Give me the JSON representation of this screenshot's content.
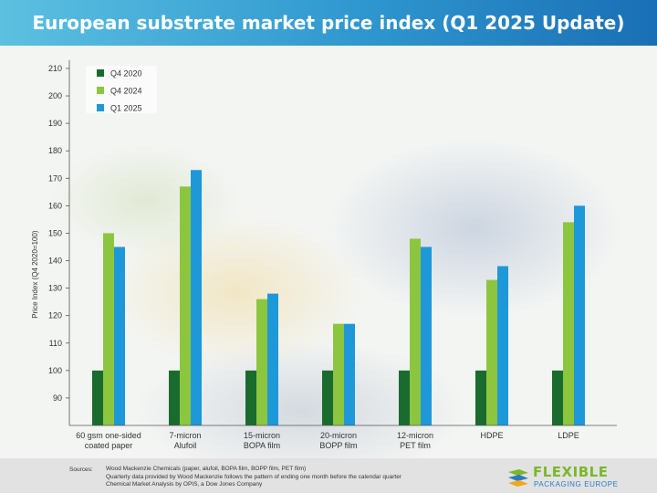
{
  "header": {
    "title": "European substrate market price index (Q1 2025 Update)"
  },
  "chart_data": {
    "type": "bar",
    "title": "European substrate market price index (Q1 2025 Update)",
    "ylabel": "Price Index (Q4 2020=100)",
    "xlabel": "",
    "ylim": [
      80,
      213
    ],
    "yticks": [
      90,
      100,
      110,
      120,
      130,
      140,
      150,
      160,
      170,
      180,
      190,
      200,
      210
    ],
    "grid": false,
    "legend_position": "top-left",
    "categories": [
      [
        "60 gsm one-sided",
        "coated paper"
      ],
      [
        "7-micron",
        "Alufoil"
      ],
      [
        "15-micron",
        "BOPA film"
      ],
      [
        "20-micron",
        "BOPP film"
      ],
      [
        "12-micron",
        "PET film"
      ],
      [
        "HDPE"
      ],
      [
        "LDPE"
      ]
    ],
    "series": [
      {
        "name": "Q4 2020",
        "color": "#1a6b2e",
        "values": [
          100,
          100,
          100,
          100,
          100,
          100,
          100
        ]
      },
      {
        "name": "Q4 2024",
        "color": "#8cc63f",
        "values": [
          150,
          167,
          126,
          117,
          148,
          133,
          154
        ]
      },
      {
        "name": "Q1 2025",
        "color": "#1e98d8",
        "values": [
          145,
          173,
          128,
          117,
          145,
          138,
          160
        ]
      }
    ]
  },
  "footer": {
    "sources_label": "Sources:",
    "sources": [
      "Wood Mackenzie Chemicals (paper, alufoil, BOPA film, BOPP film, PET film)",
      "Quarterly data provided by Wood Mackenzie follows the pattern of ending one month before the calendar quarter",
      "Chemical Market Analysis by OPIS, a Dow Jones Company"
    ]
  },
  "logo": {
    "line1": "FLEXIBLE",
    "line2": "PACKAGING EUROPE"
  }
}
